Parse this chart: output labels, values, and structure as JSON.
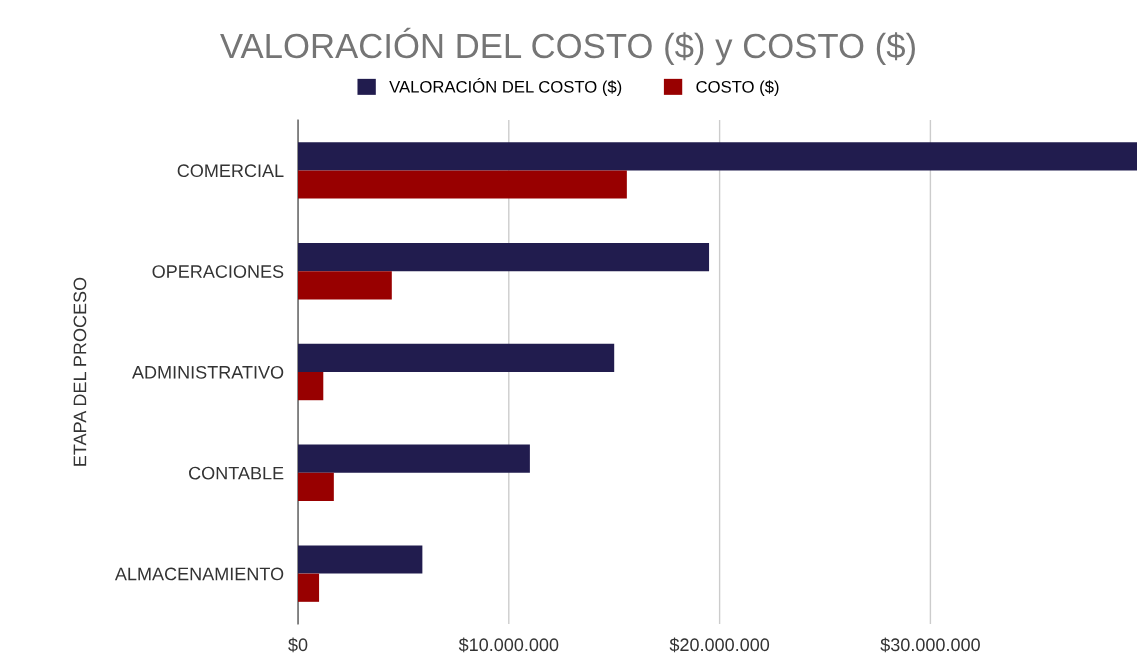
{
  "chart_data": {
    "type": "bar",
    "orientation": "horizontal",
    "title": "VALORACIÓN DEL COSTO ($) y COSTO ($)",
    "ylabel": "ETAPA DEL PROCESO",
    "categories": [
      "COMERCIAL",
      "OPERACIONES",
      "ADMINISTRATIVO",
      "CONTABLE",
      "ALMACENAMIENTO"
    ],
    "series": [
      {
        "name": "VALORACIÓN DEL COSTO ($)",
        "color": "#211c4e",
        "values": [
          39800000,
          19500000,
          15000000,
          11000000,
          5900000
        ]
      },
      {
        "name": "COSTO ($)",
        "color": "#980000",
        "values": [
          15600000,
          4450000,
          1200000,
          1700000,
          1000000
        ]
      }
    ],
    "xlim": [
      0,
      39800000
    ],
    "xticks": [
      {
        "value": 0,
        "label": "$0"
      },
      {
        "value": 10000000,
        "label": "$10.000.000"
      },
      {
        "value": 20000000,
        "label": "$20.000.000"
      },
      {
        "value": 30000000,
        "label": "$30.000.000"
      }
    ],
    "grid": "x",
    "legend": "top"
  }
}
